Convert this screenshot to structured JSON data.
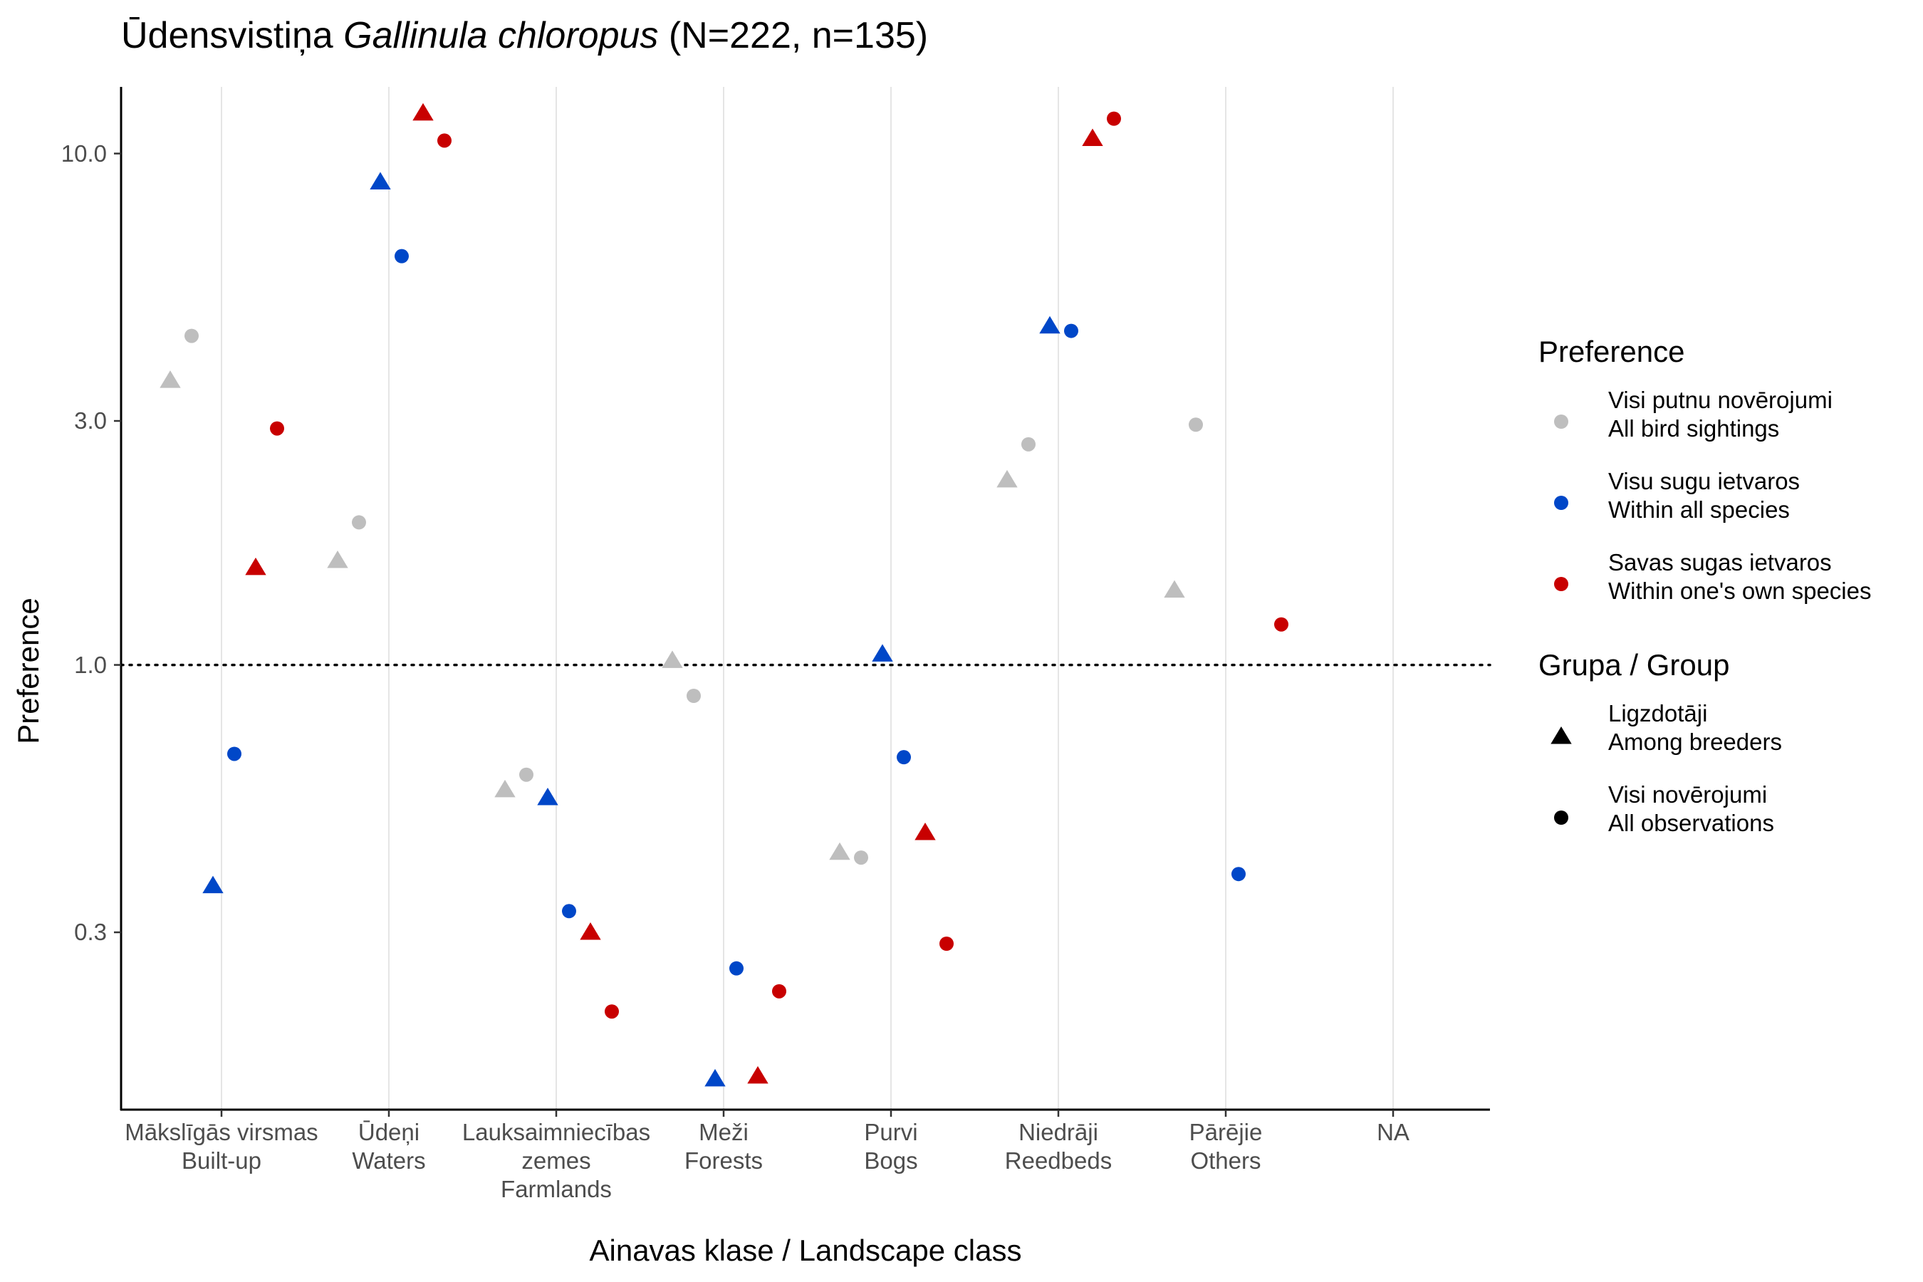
{
  "title": {
    "prefix": "Ūdensvistiņa ",
    "species": "Gallinula chloropus",
    "suffix": " (N=222, n=135)"
  },
  "chart_data": {
    "type": "scatter",
    "title": "Ūdensvistiņa Gallinula chloropus (N=222, n=135)",
    "xlabel": "Ainavas klase / Landscape class",
    "ylabel": "Preference",
    "y_scale": "log",
    "ylim": [
      0.135,
      13.5
    ],
    "y_ticks": [
      {
        "value": 0.3,
        "label": "0.3"
      },
      {
        "value": 1.0,
        "label": "1.0"
      },
      {
        "value": 3.0,
        "label": "3.0"
      },
      {
        "value": 10.0,
        "label": "10.0"
      }
    ],
    "reference_line": {
      "value": 1.0,
      "style": "dotted"
    },
    "grid": {
      "x_major": true,
      "y_major": false
    },
    "legend_position": "right",
    "categories": [
      {
        "line1": "Mākslīgās virsmas",
        "line2": "Built-up",
        "line3": ""
      },
      {
        "line1": "Ūdeņi",
        "line2": "Waters",
        "line3": ""
      },
      {
        "line1": "Lauksaimniecības",
        "line2": "zemes",
        "line3": "Farmlands"
      },
      {
        "line1": "Meži",
        "line2": "Forests",
        "line3": ""
      },
      {
        "line1": "Purvi",
        "line2": "Bogs",
        "line3": ""
      },
      {
        "line1": "Niedrāji",
        "line2": "Reedbeds",
        "line3": ""
      },
      {
        "line1": "Pārējie",
        "line2": "Others",
        "line3": ""
      },
      {
        "line1": "NA",
        "line2": "",
        "line3": ""
      }
    ],
    "preference_legend": {
      "title": "Preference",
      "items": [
        {
          "key": "all_sightings",
          "line1": "Visi putnu novērojumi",
          "line2": "All bird sightings",
          "color": "#bebebe"
        },
        {
          "key": "all_species",
          "line1": "Visu sugu ietvaros",
          "line2": "Within all species",
          "color": "#0047c8"
        },
        {
          "key": "own_species",
          "line1": "Savas sugas ietvaros",
          "line2": "Within one's own species",
          "color": "#c80000"
        }
      ]
    },
    "group_legend": {
      "title": "Grupa / Group",
      "items": [
        {
          "key": "breeders",
          "line1": "Ligzdotāji",
          "line2": "Among breeders",
          "shape": "triangle"
        },
        {
          "key": "all_obs",
          "line1": "Visi novērojumi",
          "line2": "All observations",
          "shape": "circle"
        }
      ]
    },
    "series": [
      {
        "preference": "all_sightings",
        "group": "breeders",
        "values": [
          3.6,
          1.6,
          0.57,
          1.02,
          0.43,
          2.3,
          1.4,
          null
        ]
      },
      {
        "preference": "all_sightings",
        "group": "all_obs",
        "values": [
          4.4,
          1.9,
          0.61,
          0.87,
          0.42,
          2.7,
          2.95,
          null
        ]
      },
      {
        "preference": "all_species",
        "group": "breeders",
        "values": [
          0.37,
          8.8,
          0.55,
          0.155,
          1.05,
          4.6,
          null,
          null
        ]
      },
      {
        "preference": "all_species",
        "group": "all_obs",
        "values": [
          0.67,
          6.3,
          0.33,
          0.255,
          0.66,
          4.5,
          0.39,
          null
        ]
      },
      {
        "preference": "own_species",
        "group": "breeders",
        "values": [
          1.55,
          12.0,
          0.3,
          0.157,
          0.47,
          10.7,
          null,
          null
        ]
      },
      {
        "preference": "own_species",
        "group": "all_obs",
        "values": [
          2.9,
          10.6,
          0.21,
          0.23,
          0.285,
          11.7,
          1.2,
          null
        ]
      }
    ]
  }
}
